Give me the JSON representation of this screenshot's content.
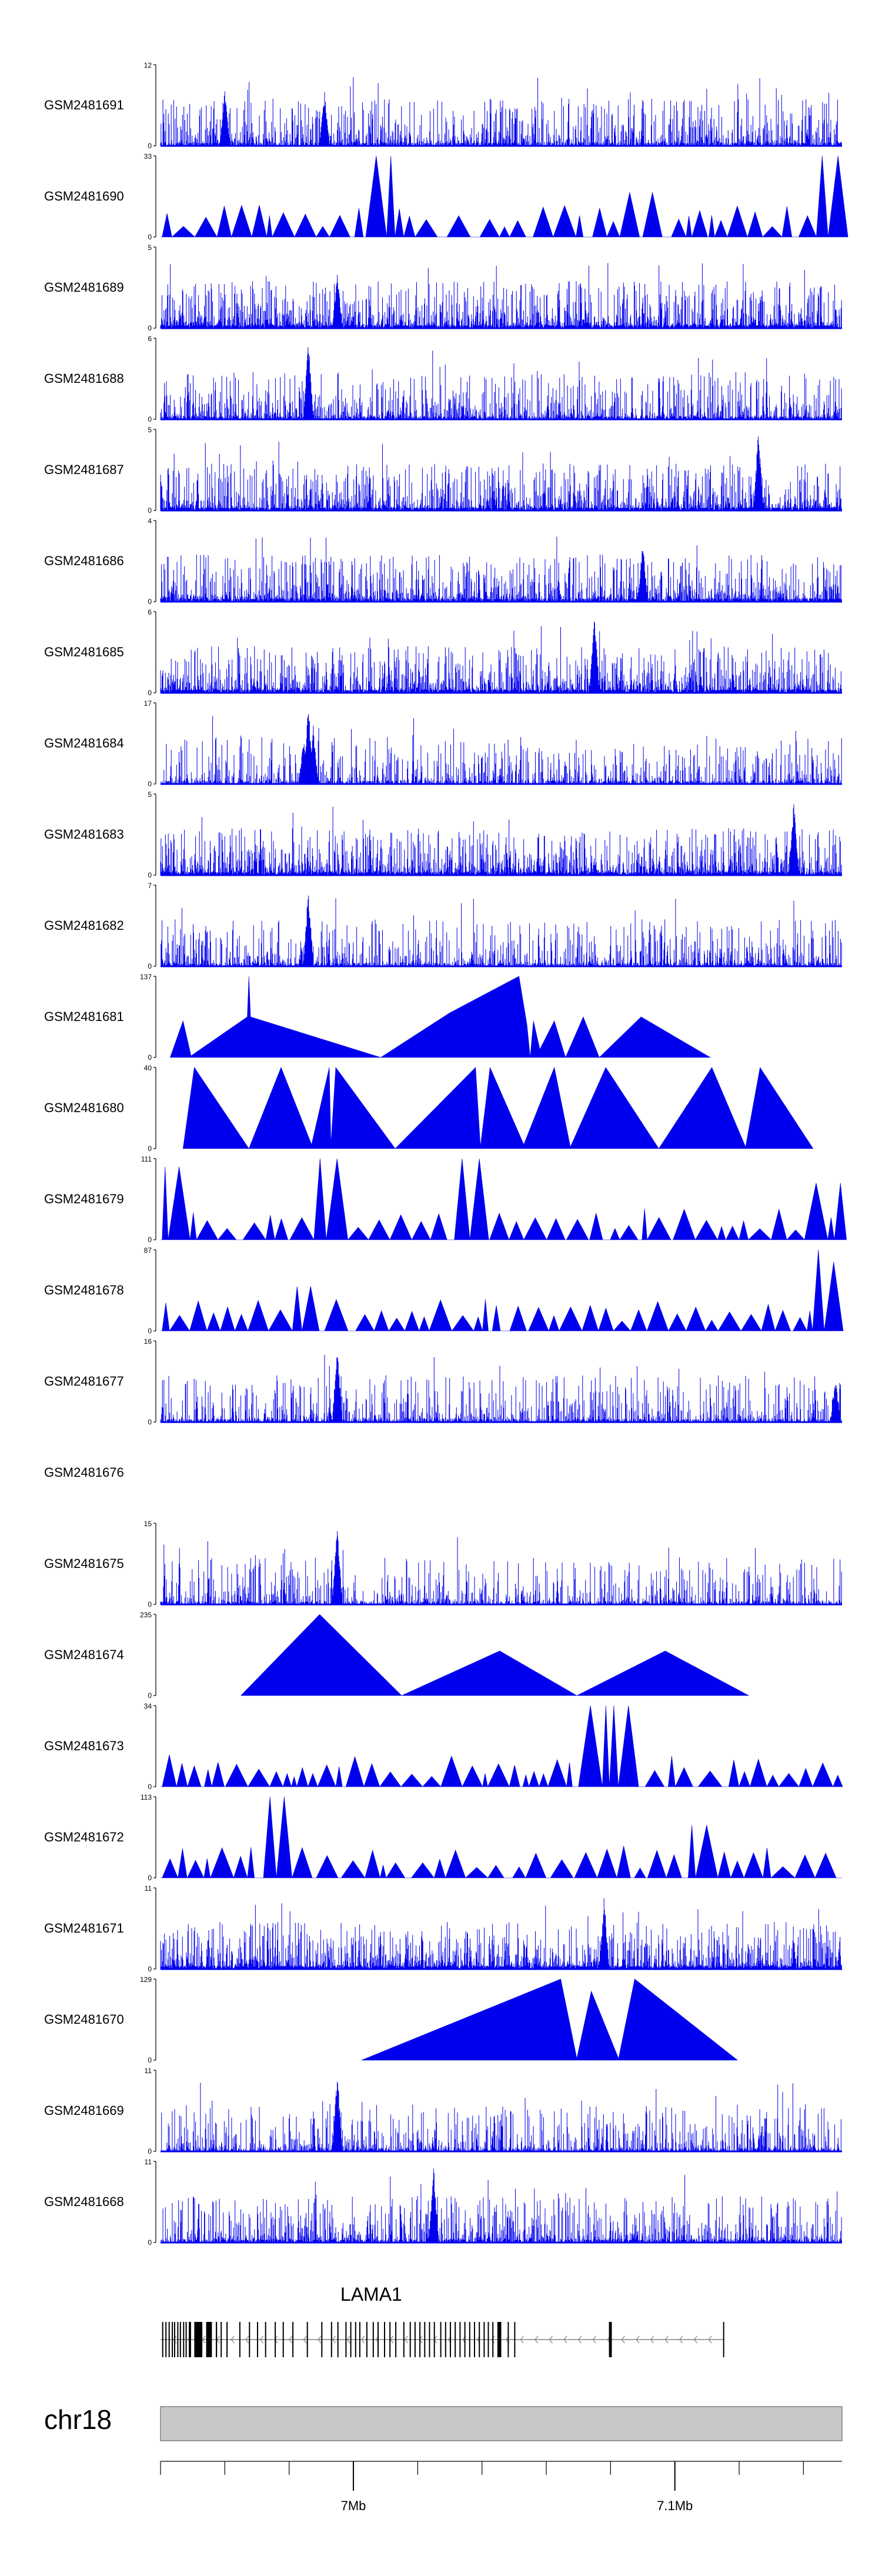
{
  "chart_data": {
    "type": "area",
    "title": "",
    "chromosome": "chr18",
    "xlim_mb": [
      6.91,
      7.122
    ],
    "x_ticks": [
      {
        "value": 6.91,
        "label": ""
      },
      {
        "value": 6.93,
        "label": ""
      },
      {
        "value": 6.95,
        "label": ""
      },
      {
        "value": 6.97,
        "label": "7Mb"
      },
      {
        "value": 6.99,
        "label": ""
      },
      {
        "value": 7.01,
        "label": ""
      },
      {
        "value": 7.03,
        "label": ""
      },
      {
        "value": 7.05,
        "label": ""
      },
      {
        "value": 7.07,
        "label": "7.1Mb"
      },
      {
        "value": 7.09,
        "label": ""
      },
      {
        "value": 7.11,
        "label": ""
      }
    ],
    "gene": {
      "name": "LAMA1",
      "strand": "-",
      "start": 6.91,
      "end": 7.085,
      "exons": [
        [
          6.9105,
          6.9108
        ],
        [
          6.9115,
          6.9118
        ],
        [
          6.9125,
          6.9128
        ],
        [
          6.9135,
          6.9138
        ],
        [
          6.9142,
          6.9145
        ],
        [
          6.9152,
          6.9155
        ],
        [
          6.916,
          6.9163
        ],
        [
          6.917,
          6.9173
        ],
        [
          6.9178,
          6.9181
        ],
        [
          6.9188,
          6.9195
        ],
        [
          6.9205,
          6.923
        ],
        [
          6.9242,
          6.926
        ],
        [
          6.9272,
          6.9276
        ],
        [
          6.9287,
          6.929
        ],
        [
          6.9305,
          6.9308
        ],
        [
          6.9345,
          6.9348
        ],
        [
          6.9375,
          6.9378
        ],
        [
          6.94,
          6.9403
        ],
        [
          6.9425,
          6.9428
        ],
        [
          6.9455,
          6.9458
        ],
        [
          6.948,
          6.9483
        ],
        [
          6.951,
          6.9513
        ],
        [
          6.9555,
          6.9558
        ],
        [
          6.96,
          6.9603
        ],
        [
          6.963,
          6.9633
        ],
        [
          6.965,
          6.9653
        ],
        [
          6.9675,
          6.9678
        ],
        [
          6.969,
          6.9693
        ],
        [
          6.9705,
          6.9708
        ],
        [
          6.9718,
          6.9721
        ],
        [
          6.974,
          6.9743
        ],
        [
          6.976,
          6.9763
        ],
        [
          6.9775,
          6.9778
        ],
        [
          6.9795,
          6.9798
        ],
        [
          6.9812,
          6.9815
        ],
        [
          6.983,
          6.9833
        ],
        [
          6.9855,
          6.9858
        ],
        [
          6.9875,
          6.9878
        ],
        [
          6.989,
          6.9893
        ],
        [
          6.9905,
          6.9908
        ],
        [
          6.992,
          6.9923
        ],
        [
          6.9935,
          6.9938
        ],
        [
          6.995,
          6.9953
        ],
        [
          6.997,
          6.9973
        ],
        [
          6.9985,
          6.9988
        ],
        [
          7.0,
          7.0003
        ],
        [
          7.0015,
          7.0018
        ],
        [
          7.003,
          7.0033
        ],
        [
          7.0045,
          7.0048
        ],
        [
          7.006,
          7.0063
        ],
        [
          7.0075,
          7.0078
        ],
        [
          7.009,
          7.0093
        ],
        [
          7.0105,
          7.0108
        ],
        [
          7.0118,
          7.0121
        ],
        [
          7.0132,
          7.0135
        ],
        [
          7.0148,
          7.016
        ],
        [
          7.018,
          7.0183
        ],
        [
          7.02,
          7.0203
        ],
        [
          7.0495,
          7.0504
        ],
        [
          7.085,
          7.0853
        ]
      ]
    },
    "tracks": [
      {
        "name": "GSM2481691",
        "ymax": 12,
        "style": "bars",
        "seed": 11,
        "density": 0.75,
        "peaks": [
          [
            6.93,
            0.7
          ],
          [
            6.961,
            0.7
          ]
        ]
      },
      {
        "name": "GSM2481690",
        "ymax": 33,
        "style": "triangles",
        "seed": 12,
        "peaks": [
          [
            6.98,
            1.0
          ],
          [
            7.062,
            0.55
          ],
          [
            7.119,
            1.0
          ]
        ]
      },
      {
        "name": "GSM2481689",
        "ymax": 5,
        "style": "bars",
        "seed": 13,
        "density": 0.9,
        "peaks": [
          [
            6.965,
            0.7
          ]
        ]
      },
      {
        "name": "GSM2481688",
        "ymax": 6,
        "style": "bars",
        "seed": 14,
        "density": 0.7,
        "peaks": [
          [
            6.956,
            1.0
          ]
        ]
      },
      {
        "name": "GSM2481687",
        "ymax": 5,
        "style": "bars",
        "seed": 15,
        "density": 0.9,
        "peaks": [
          [
            7.096,
            1.0
          ]
        ]
      },
      {
        "name": "GSM2481686",
        "ymax": 4,
        "style": "bars",
        "seed": 16,
        "density": 0.85,
        "peaks": [
          [
            7.06,
            0.75
          ]
        ]
      },
      {
        "name": "GSM2481685",
        "ymax": 6,
        "style": "bars",
        "seed": 17,
        "density": 0.9,
        "peaks": [
          [
            7.045,
            1.0
          ]
        ]
      },
      {
        "name": "GSM2481684",
        "ymax": 17,
        "style": "bars",
        "seed": 18,
        "density": 0.6,
        "peaks": [
          [
            6.9545,
            0.55
          ],
          [
            6.956,
            1.0
          ],
          [
            6.9575,
            0.75
          ]
        ]
      },
      {
        "name": "GSM2481683",
        "ymax": 5,
        "style": "bars",
        "seed": 19,
        "density": 0.9,
        "peaks": [
          [
            7.107,
            0.95
          ]
        ]
      },
      {
        "name": "GSM2481682",
        "ymax": 7,
        "style": "bars",
        "seed": 20,
        "density": 0.65,
        "peaks": [
          [
            6.956,
            1.0
          ]
        ]
      },
      {
        "name": "GSM2481681",
        "ymax": 137,
        "style": "polygons",
        "seed": 21,
        "points": [
          [
            6.913,
            0
          ],
          [
            6.917,
            0.45
          ],
          [
            6.9195,
            0.02
          ],
          [
            6.937,
            0.5
          ],
          [
            6.9375,
            1.0
          ],
          [
            6.938,
            0.5
          ],
          [
            6.9785,
            0
          ],
          [
            7.0,
            0.55
          ],
          [
            7.0215,
            1.0
          ],
          [
            7.024,
            0.4
          ],
          [
            7.025,
            0.0
          ],
          [
            7.026,
            0.45
          ],
          [
            7.028,
            0.1
          ],
          [
            7.0325,
            0.45
          ],
          [
            7.036,
            0
          ],
          [
            7.0415,
            0.5
          ],
          [
            7.0465,
            0
          ],
          [
            7.0595,
            0.5
          ],
          [
            7.081,
            0
          ]
        ]
      },
      {
        "name": "GSM2481680",
        "ymax": 40,
        "style": "polygons",
        "seed": 22,
        "points": [
          [
            6.917,
            0
          ],
          [
            6.9205,
            1.0
          ],
          [
            6.9375,
            0
          ],
          [
            6.9475,
            1.0
          ],
          [
            6.957,
            0.05
          ],
          [
            6.9625,
            1.0
          ],
          [
            6.963,
            0.05
          ],
          [
            6.9645,
            1.0
          ],
          [
            6.983,
            0
          ],
          [
            7.008,
            1.0
          ],
          [
            7.0095,
            0.02
          ],
          [
            7.0125,
            1.0
          ],
          [
            7.023,
            0.05
          ],
          [
            7.0325,
            1.0
          ],
          [
            7.0375,
            0.02
          ],
          [
            7.0485,
            1.0
          ],
          [
            7.065,
            0
          ],
          [
            7.0815,
            1.0
          ],
          [
            7.092,
            0.02
          ],
          [
            7.0965,
            1.0
          ],
          [
            7.113,
            0
          ]
        ]
      },
      {
        "name": "GSM2481679",
        "ymax": 111,
        "style": "triangles",
        "seed": 23,
        "peaks": [
          [
            6.9115,
            0.9
          ],
          [
            6.9615,
            1.0
          ],
          [
            7.005,
            1.0
          ],
          [
            7.121,
            0.7
          ]
        ]
      },
      {
        "name": "GSM2481678",
        "ymax": 87,
        "style": "triangles",
        "seed": 24,
        "peaks": [
          [
            6.955,
            0.55
          ],
          [
            7.1175,
            1.0
          ],
          [
            7.1185,
            0.85
          ]
        ]
      },
      {
        "name": "GSM2481677",
        "ymax": 16,
        "style": "bars",
        "seed": 25,
        "density": 0.6,
        "peaks": [
          [
            6.965,
            1.0
          ],
          [
            7.12,
            0.55
          ]
        ]
      },
      {
        "name": "GSM2481676",
        "ymax": null,
        "style": "empty",
        "seed": 26
      },
      {
        "name": "GSM2481675",
        "ymax": 15,
        "style": "bars",
        "seed": 27,
        "density": 0.55,
        "peaks": [
          [
            6.965,
            1.0
          ]
        ]
      },
      {
        "name": "GSM2481674",
        "ymax": 235,
        "style": "polygons",
        "seed": 28,
        "points": [
          [
            6.935,
            0
          ],
          [
            6.9595,
            1.0
          ],
          [
            6.985,
            0
          ],
          [
            7.0155,
            0.55
          ],
          [
            7.0395,
            0
          ],
          [
            7.067,
            0.55
          ],
          [
            7.093,
            0
          ]
        ]
      },
      {
        "name": "GSM2481673",
        "ymax": 34,
        "style": "triangles",
        "seed": 29,
        "peaks": [
          [
            7.05,
            1.0
          ]
        ]
      },
      {
        "name": "GSM2481672",
        "ymax": 113,
        "style": "triangles",
        "seed": 30,
        "peaks": [
          [
            6.944,
            1.0
          ],
          [
            7.0775,
            0.65
          ]
        ]
      },
      {
        "name": "GSM2481671",
        "ymax": 11,
        "style": "bars",
        "seed": 31,
        "density": 0.9,
        "peaks": [
          [
            7.048,
            0.9
          ]
        ]
      },
      {
        "name": "GSM2481670",
        "ymax": 129,
        "style": "polygons",
        "seed": 32,
        "points": [
          [
            6.9725,
            0
          ],
          [
            7.0345,
            1.0
          ],
          [
            7.0395,
            0.02
          ],
          [
            7.044,
            0.85
          ],
          [
            7.0525,
            0.02
          ],
          [
            7.0575,
            1.0
          ],
          [
            7.0895,
            0
          ]
        ]
      },
      {
        "name": "GSM2481669",
        "ymax": 11,
        "style": "bars",
        "seed": 33,
        "density": 0.6,
        "peaks": [
          [
            6.965,
            1.0
          ]
        ]
      },
      {
        "name": "GSM2481668",
        "ymax": 11,
        "style": "bars",
        "seed": 34,
        "density": 0.7,
        "peaks": [
          [
            6.995,
            0.95
          ]
        ]
      }
    ]
  },
  "colors": {
    "signal": "#0000ee",
    "axis": "#000000",
    "ideogram": "#c8c8c8",
    "ideogram_border": "#808080",
    "gene": "#000000",
    "intron_arrows": "#808080"
  }
}
